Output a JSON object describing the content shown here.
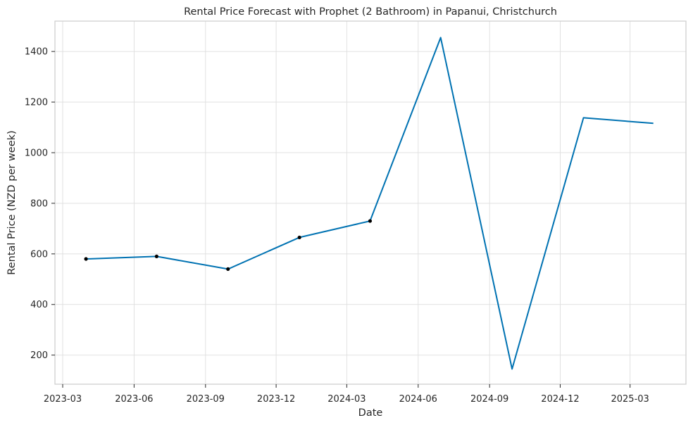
{
  "chart_data": {
    "type": "line",
    "title": "Rental Price Forecast with Prophet (2 Bathroom) in Papanui, Christchurch",
    "xlabel": "Date",
    "ylabel": "Rental Price (NZD per week)",
    "x_ticks": [
      "2023-03",
      "2023-06",
      "2023-09",
      "2023-12",
      "2024-03",
      "2024-06",
      "2024-09",
      "2024-12",
      "2025-03"
    ],
    "y_ticks": [
      200,
      400,
      600,
      800,
      1000,
      1200,
      1400
    ],
    "xlim": [
      "2023-02-19",
      "2025-05-12"
    ],
    "ylim": [
      85,
      1520
    ],
    "grid": true,
    "series": [
      {
        "color": "#0072b2",
        "x": [
          "2023-03-31",
          "2023-06-30",
          "2023-09-30",
          "2023-12-31",
          "2024-03-31",
          "2024-06-30",
          "2024-09-30",
          "2024-12-31",
          "2025-03-31"
        ],
        "values": [
          580,
          590,
          540,
          665,
          730,
          1455,
          145,
          1138,
          1116
        ]
      }
    ],
    "observed_points": {
      "color": "#000000",
      "x": [
        "2023-03-31",
        "2023-06-30",
        "2023-09-30",
        "2023-12-31",
        "2024-03-31"
      ],
      "values": [
        580,
        590,
        540,
        665,
        730
      ]
    }
  }
}
